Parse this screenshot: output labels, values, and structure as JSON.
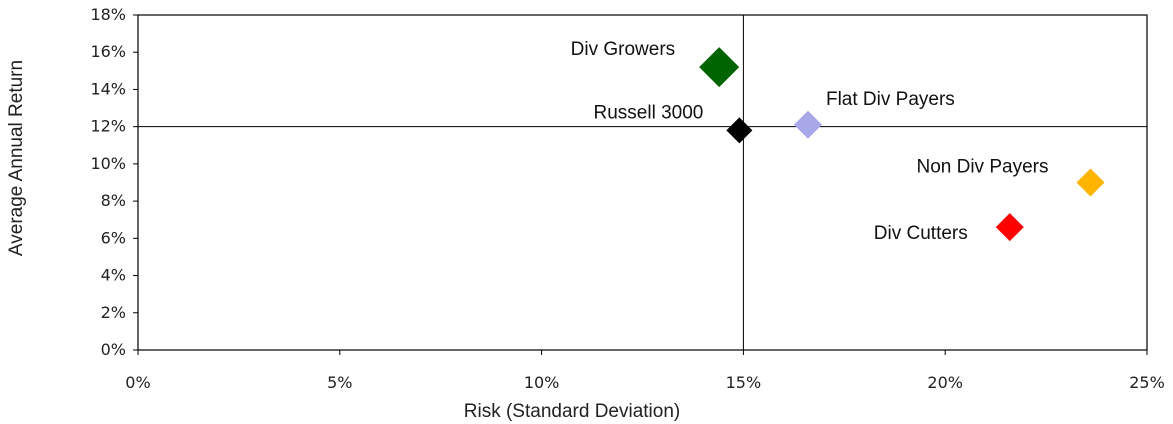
{
  "chart_data": {
    "type": "scatter",
    "title": "",
    "xlabel": "Risk (Standard Deviation)",
    "ylabel": "Average Annual Return",
    "xlim": [
      0,
      25
    ],
    "ylim": [
      0,
      18
    ],
    "x_ticks": [
      "0%",
      "5%",
      "10%",
      "15%",
      "20%",
      "25%"
    ],
    "y_ticks": [
      "0%",
      "2%",
      "4%",
      "6%",
      "8%",
      "10%",
      "12%",
      "14%",
      "16%",
      "18%"
    ],
    "grid": false,
    "reference_lines": {
      "x": 15,
      "y": 12
    },
    "points": [
      {
        "name": "Div Growers",
        "x": 14.4,
        "y": 15.2,
        "color": "#006400"
      },
      {
        "name": "Russell 3000",
        "x": 14.9,
        "y": 11.8,
        "color": "#000000"
      },
      {
        "name": "Flat Div Payers",
        "x": 16.6,
        "y": 12.1,
        "color": "#A8A8E8"
      },
      {
        "name": "Non Div Payers",
        "x": 23.6,
        "y": 9.0,
        "color": "#FFB400"
      },
      {
        "name": "Div Cutters",
        "x": 21.6,
        "y": 6.6,
        "color": "#FF0000"
      }
    ]
  }
}
